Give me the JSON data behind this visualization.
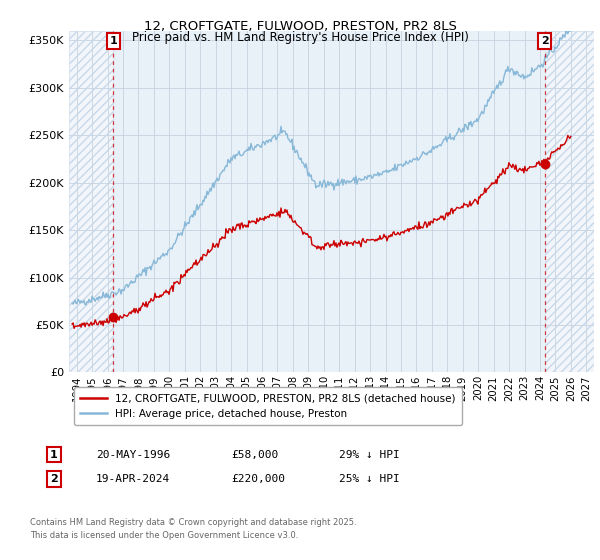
{
  "title": "12, CROFTGATE, FULWOOD, PRESTON, PR2 8LS",
  "subtitle": "Price paid vs. HM Land Registry's House Price Index (HPI)",
  "legend_label_red": "12, CROFTGATE, FULWOOD, PRESTON, PR2 8LS (detached house)",
  "legend_label_blue": "HPI: Average price, detached house, Preston",
  "footnote": "Contains HM Land Registry data © Crown copyright and database right 2025.\nThis data is licensed under the Open Government Licence v3.0.",
  "sale1_date": "20-MAY-1996",
  "sale1_price": "£58,000",
  "sale1_hpi": "29% ↓ HPI",
  "sale2_date": "19-APR-2024",
  "sale2_price": "£220,000",
  "sale2_hpi": "25% ↓ HPI",
  "sale1_x": 1996.38,
  "sale2_x": 2024.3,
  "sale1_y": 58000,
  "sale2_y": 220000,
  "ylim": [
    0,
    360000
  ],
  "xlim": [
    1993.5,
    2027.5
  ],
  "bg_color": "#e8f0f8",
  "hatch_color": "#c8d8e8",
  "grid_color": "#c5d3e0",
  "red_color": "#cc0000",
  "blue_color": "#88b8d8",
  "hatch_left_end": 1996.38,
  "hatch_right_start": 2024.3,
  "yticks": [
    0,
    50000,
    100000,
    150000,
    200000,
    250000,
    300000,
    350000
  ]
}
